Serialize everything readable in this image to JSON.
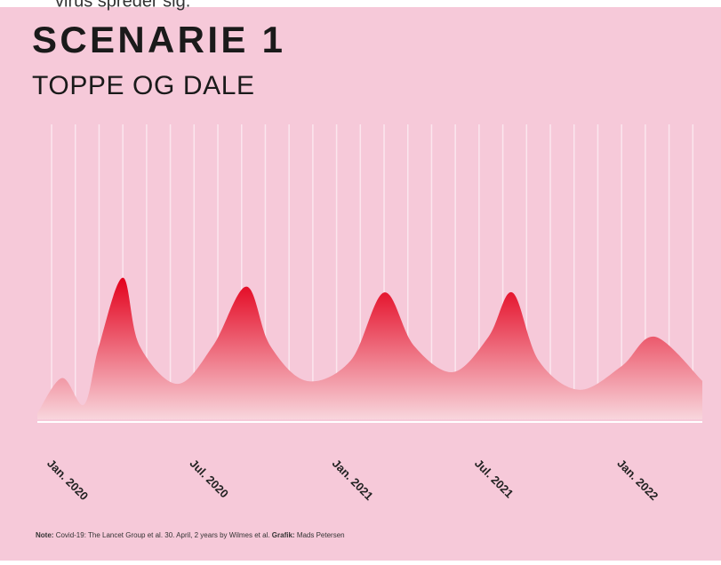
{
  "top_fragment": "virus spreder sig.",
  "chart_data": {
    "type": "area",
    "title": "SCENARIE 1",
    "subtitle": "TOPPE OG DALE",
    "x": [
      -1.6,
      -0.56,
      0.37,
      1.0,
      2.0,
      2.7,
      4.3,
      5.8,
      7.2,
      8.2,
      9.75,
      11.6,
      13.0,
      14.25,
      15.9,
      17.4,
      18.4,
      19.5,
      21.2,
      23.0,
      24.4,
      26.4
    ],
    "values": [
      2,
      14,
      5,
      25,
      48,
      25,
      12,
      25,
      45,
      25,
      13,
      20,
      43,
      25,
      16,
      28,
      43,
      20,
      10,
      18,
      28,
      13
    ],
    "color": "#e3001b",
    "xlim": [
      -1.6,
      26.4
    ],
    "ylim": [
      0,
      100
    ],
    "xticks": [
      {
        "value": 0,
        "label": "Jan. 2020"
      },
      {
        "value": 6,
        "label": "Jul. 2020"
      },
      {
        "value": 12,
        "label": "Jan. 2021"
      },
      {
        "value": 18,
        "label": "Jul. 2021"
      },
      {
        "value": 24,
        "label": "Jan. 2022"
      }
    ],
    "xgrid": [
      -1,
      0,
      1,
      2,
      3,
      4,
      5,
      6,
      7,
      8,
      9,
      10,
      11,
      12,
      13,
      14,
      15,
      16,
      17,
      18,
      19,
      20,
      21,
      22,
      23,
      24,
      25,
      26
    ],
    "note": {
      "label": "Note:",
      "text": "Covid-19: The Lancet Group et al. 30. April, 2 years by Wilmes et al.",
      "credit_label": "Grafik:",
      "credit": "Mads Petersen"
    }
  }
}
